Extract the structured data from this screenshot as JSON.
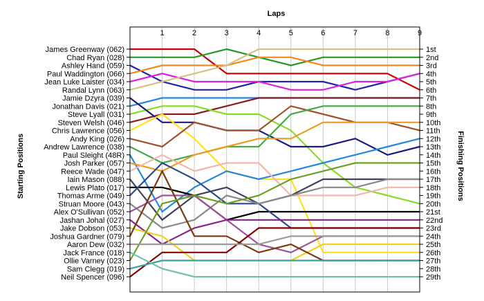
{
  "chart_data": {
    "type": "line",
    "title": "",
    "xlabel": "Laps",
    "ylabel_left": "Starting Positions",
    "ylabel_right": "Finishing Positions",
    "x": [
      0,
      1,
      2,
      3,
      4,
      5,
      6,
      7,
      8,
      9
    ],
    "xticks": [
      "1",
      "2",
      "3",
      "4",
      "5",
      "6",
      "7",
      "8",
      "9"
    ],
    "ylim": [
      1,
      29
    ],
    "grid": "vertical",
    "drivers": [
      "James Greenway (062)",
      "Chad Ryan (028)",
      "Ashley Hand (059)",
      "Paul Waddington (066)",
      "Jean Luke Laister (034)",
      "Randal Lynn (063)",
      "Jamie Dzyra (039)",
      "Jonathan Davis (021)",
      "Steve Lyall (031)",
      "Steven Welsh (046)",
      "Chris Lawrence (056)",
      "Andy King (026)",
      "Andrew Lawrence (038)",
      "Paul Sleight (48R)",
      "Josh Parker (057)",
      "Reece Wade (047)",
      "Iain Mason (088)",
      "Lewis Plato (017)",
      "Thomas Arme (049)",
      "Struan Moore (043)",
      "Alex O'Sullivan (052)",
      "Jashan Johal (027)",
      "Jake Dobson (053)",
      "Joshua Gardner (079)",
      "Aaron Dew (032)",
      "Jack France (018)",
      "Ollie Varney (023)",
      "Sam Clegg (019)",
      "Neil Spencer (096)"
    ],
    "finishing_labels": [
      "1st",
      "2nd",
      "3rd",
      "4th",
      "5th",
      "6th",
      "7th",
      "8th",
      "9th",
      "10th",
      "11th",
      "12th",
      "13th",
      "14th",
      "15th",
      "16th",
      "17th",
      "18th",
      "19th",
      "20th",
      "21st",
      "22nd",
      "23rd",
      "24th",
      "25th",
      "26th",
      "27th",
      "28th",
      "29th"
    ],
    "series": [
      {
        "color": "#cc0000",
        "values": [
          1,
          1,
          1,
          4,
          4,
          4,
          4,
          4,
          4,
          6
        ]
      },
      {
        "color": "#229922",
        "values": [
          2,
          2,
          2,
          1,
          2,
          3,
          2,
          2,
          2,
          2
        ]
      },
      {
        "color": "#2222aa",
        "values": [
          3,
          5,
          6,
          6,
          5,
          5,
          5,
          6,
          5,
          4
        ]
      },
      {
        "color": "#f08a20",
        "values": [
          4,
          3,
          3,
          3,
          2,
          2,
          3,
          3,
          3,
          3
        ]
      },
      {
        "color": "#dd22dd",
        "values": [
          5,
          4,
          5,
          5,
          5,
          6,
          6,
          5,
          5,
          4
        ]
      },
      {
        "color": "#d8c080",
        "values": [
          6,
          5,
          4,
          3,
          1,
          1,
          1,
          1,
          1,
          1
        ]
      },
      {
        "color": "#2288dd",
        "values": [
          8,
          7,
          7,
          7,
          7,
          7,
          7,
          7,
          7,
          7
        ]
      },
      {
        "color": "#8b1a1a",
        "values": [
          10,
          9,
          9,
          8,
          7,
          7,
          7,
          7,
          7,
          7
        ]
      },
      {
        "color": "#88dd22",
        "values": [
          9,
          8,
          8,
          9,
          9,
          11,
          15,
          18,
          19,
          20
        ]
      },
      {
        "color": "#1a1a80",
        "values": [
          7,
          10,
          10,
          11,
          11,
          13,
          13,
          12,
          14,
          13
        ]
      },
      {
        "color": "#ffe020",
        "values": [
          11,
          9,
          12,
          16,
          17,
          17,
          26,
          26,
          26,
          26
        ]
      },
      {
        "color": "#a0522d",
        "values": [
          12,
          13,
          10,
          11,
          11,
          8,
          9,
          10,
          10,
          11
        ]
      },
      {
        "color": "#44aa44",
        "values": [
          13,
          15,
          14,
          13,
          13,
          9,
          8,
          8,
          8,
          8
        ]
      },
      {
        "color": "#2288dd",
        "values": [
          14,
          21,
          18,
          16,
          17,
          16,
          15,
          14,
          13,
          12
        ]
      },
      {
        "color": "#ee9922",
        "values": [
          15,
          16,
          14,
          13,
          12,
          12,
          10,
          10,
          10,
          10
        ]
      },
      {
        "color": "#f0b8a8",
        "values": [
          16,
          14,
          16,
          15,
          15,
          19,
          19,
          19,
          18,
          18
        ]
      },
      {
        "color": "#404060",
        "values": [
          17,
          22,
          19,
          18,
          20,
          19,
          17,
          17,
          17,
          17
        ]
      },
      {
        "color": "#000000",
        "values": [
          18,
          18,
          19,
          22,
          21,
          21,
          21,
          21,
          21,
          21
        ]
      },
      {
        "color": "#2c4a8a",
        "values": [
          19,
          15,
          17,
          20,
          20,
          23,
          23,
          23,
          23,
          23
        ]
      },
      {
        "color": "#888888",
        "values": [
          20,
          23,
          22,
          19,
          20,
          19,
          18,
          18,
          17,
          17
        ]
      },
      {
        "color": "#a0509a",
        "values": [
          21,
          19,
          19,
          22,
          25,
          26,
          24,
          24,
          24,
          24
        ]
      },
      {
        "color": "#882288",
        "values": [
          22,
          25,
          23,
          22,
          22,
          22,
          22,
          22,
          22,
          22
        ]
      },
      {
        "color": "#f0d020",
        "values": [
          23,
          24,
          27,
          27,
          27,
          27,
          25,
          25,
          25,
          25
        ]
      },
      {
        "color": "#7a3a10",
        "values": [
          24,
          16,
          24,
          24,
          26,
          25,
          27,
          27,
          27,
          27
        ]
      },
      {
        "color": "#880000",
        "values": [
          29,
          26,
          26,
          26,
          23,
          23,
          23,
          23,
          23,
          23
        ]
      },
      {
        "color": "#6aa020",
        "values": [
          27,
          20,
          19,
          20,
          19,
          17,
          16,
          15,
          15,
          15
        ]
      },
      {
        "color": "#3aa0a0",
        "values": [
          28,
          27,
          27,
          27,
          27,
          27,
          27,
          27,
          27,
          27
        ]
      },
      {
        "color": "#999999",
        "values": [
          25,
          25,
          25,
          25,
          25,
          24,
          24,
          24,
          24,
          24
        ]
      },
      {
        "color": "#70c0b0",
        "values": [
          26,
          28,
          29,
          29,
          29,
          29,
          29,
          29,
          29,
          29
        ]
      }
    ]
  }
}
